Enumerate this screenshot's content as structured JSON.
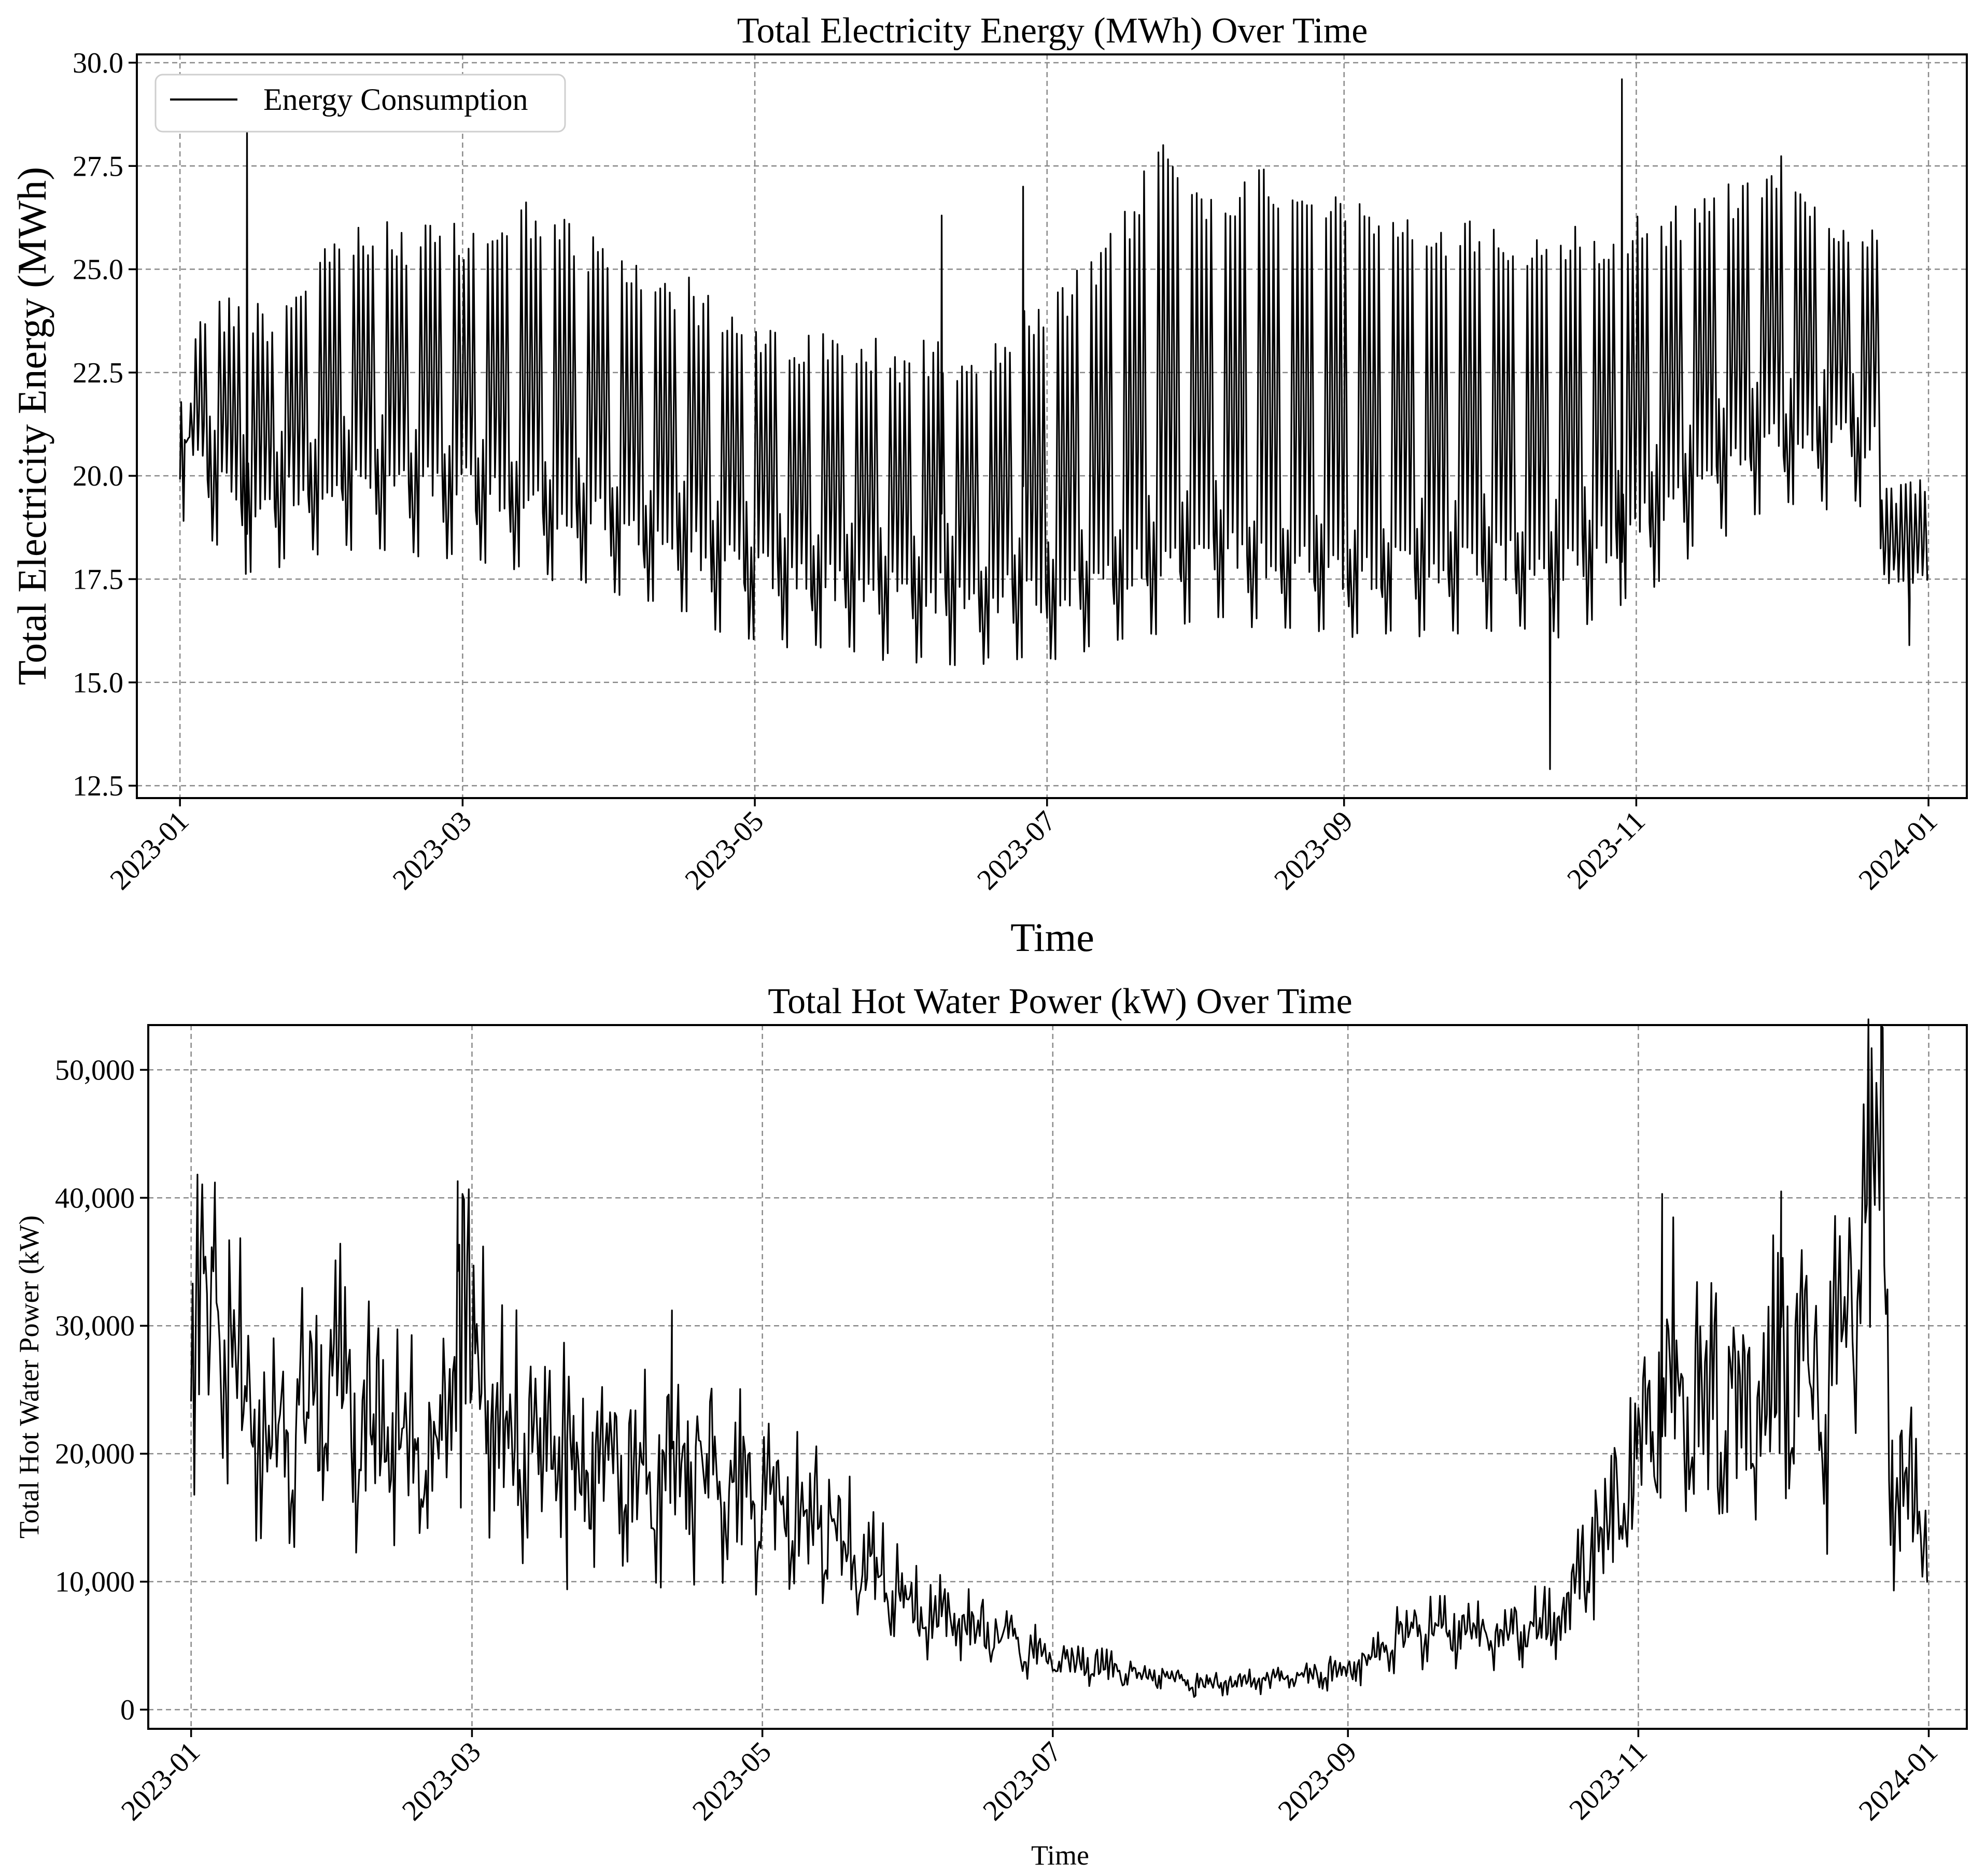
{
  "chart_data": [
    {
      "type": "line",
      "title": "Total Electricity Energy (MWh) Over Time",
      "xlabel": "Time",
      "ylabel": "Total Electricity Energy (MWh)",
      "xlim": [
        "2022-12-23",
        "2024-01-09"
      ],
      "ylim": [
        12.2,
        30.2
      ],
      "xticks": [
        "2023-01",
        "2023-03",
        "2023-05",
        "2023-07",
        "2023-09",
        "2023-11",
        "2024-01"
      ],
      "yticks": [
        "12.5",
        "15.0",
        "17.5",
        "20.0",
        "22.5",
        "25.0",
        "27.5",
        "30.0"
      ],
      "grid": true,
      "legend": {
        "position": "top-left",
        "entries": [
          "Energy Consumption"
        ]
      },
      "series": [
        {
          "name": "Energy Consumption",
          "sampling": "daily",
          "x_start": "2023-01-01",
          "x_end": "2023-12-31",
          "weekday_peak_trend": [
            [
              "2023-01-01",
              20.5
            ],
            [
              "2023-01-05",
              24.5
            ],
            [
              "2023-01-20",
              24.3
            ],
            [
              "2023-02-01",
              25.9
            ],
            [
              "2023-02-15",
              26.2
            ],
            [
              "2023-03-01",
              26.1
            ],
            [
              "2023-03-15",
              26.8
            ],
            [
              "2023-04-01",
              25.6
            ],
            [
              "2023-04-15",
              25.0
            ],
            [
              "2023-05-01",
              23.8
            ],
            [
              "2023-05-15",
              23.5
            ],
            [
              "2023-06-01",
              23.3
            ],
            [
              "2023-06-15",
              23.4
            ],
            [
              "2023-07-01",
              24.3
            ],
            [
              "2023-07-15",
              26.0
            ],
            [
              "2023-07-25",
              28.4
            ],
            [
              "2023-08-01",
              27.0
            ],
            [
              "2023-08-15",
              27.6
            ],
            [
              "2023-09-01",
              27.2
            ],
            [
              "2023-09-15",
              26.2
            ],
            [
              "2023-10-01",
              26.3
            ],
            [
              "2023-10-15",
              25.9
            ],
            [
              "2023-11-01",
              26.5
            ],
            [
              "2023-11-15",
              26.8
            ],
            [
              "2023-12-01",
              28.0
            ],
            [
              "2023-12-15",
              26.4
            ],
            [
              "2023-12-21",
              26.0
            ],
            [
              "2023-12-31",
              19.6
            ]
          ],
          "weekend_low_trend": [
            [
              "2023-01-01",
              19.0
            ],
            [
              "2023-01-15",
              17.8
            ],
            [
              "2023-02-01",
              18.5
            ],
            [
              "2023-03-01",
              18.2
            ],
            [
              "2023-04-01",
              17.4
            ],
            [
              "2023-05-01",
              16.2
            ],
            [
              "2023-06-01",
              15.7
            ],
            [
              "2023-07-01",
              15.6
            ],
            [
              "2023-08-01",
              16.8
            ],
            [
              "2023-09-01",
              16.2
            ],
            [
              "2023-10-01",
              16.5
            ],
            [
              "2023-10-15",
              16.3
            ],
            [
              "2023-11-01",
              17.3
            ],
            [
              "2023-11-15",
              18.6
            ],
            [
              "2023-12-01",
              19.4
            ],
            [
              "2023-12-21",
              19.4
            ],
            [
              "2023-12-31",
              17.6
            ]
          ],
          "notable_points": [
            [
              "2023-01-15",
              28.6
            ],
            [
              "2023-06-09",
              26.3
            ],
            [
              "2023-06-26",
              27.0
            ],
            [
              "2023-10-14",
              12.9
            ],
            [
              "2023-10-29",
              29.6
            ],
            [
              "2023-12-28",
              15.9
            ]
          ]
        }
      ]
    },
    {
      "type": "line",
      "title": "Total Hot Water Power (kW) Over Time",
      "xlabel": "Time",
      "ylabel": "Total Hot Water Power (kW)",
      "xlim": [
        "2022-12-23",
        "2024-01-09"
      ],
      "ylim": [
        -1500,
        53500
      ],
      "xticks": [
        "2023-01",
        "2023-03",
        "2023-05",
        "2023-07",
        "2023-09",
        "2023-11",
        "2024-01"
      ],
      "yticks": [
        "0",
        "10,000",
        "20,000",
        "30,000",
        "40,000",
        "50,000"
      ],
      "grid": true,
      "series": [
        {
          "sampling": "daily",
          "x_start": "2023-01-01",
          "x_end": "2023-12-31",
          "trend": [
            [
              "2023-01-01",
              33000
            ],
            [
              "2023-01-07",
              32000
            ],
            [
              "2023-01-15",
              21000
            ],
            [
              "2023-02-01",
              25000
            ],
            [
              "2023-02-10",
              21000
            ],
            [
              "2023-02-22",
              20000
            ],
            [
              "2023-02-26",
              33000
            ],
            [
              "2023-03-05",
              22000
            ],
            [
              "2023-03-15",
              21000
            ],
            [
              "2023-04-01",
              18000
            ],
            [
              "2023-04-15",
              20000
            ],
            [
              "2023-05-01",
              16000
            ],
            [
              "2023-05-15",
              14000
            ],
            [
              "2023-06-01",
              8000
            ],
            [
              "2023-06-15",
              6500
            ],
            [
              "2023-07-01",
              4000
            ],
            [
              "2023-07-15",
              3000
            ],
            [
              "2023-08-01",
              2000
            ],
            [
              "2023-08-15",
              2300
            ],
            [
              "2023-09-01",
              3000
            ],
            [
              "2023-09-15",
              6500
            ],
            [
              "2023-10-01",
              6000
            ],
            [
              "2023-10-15",
              7000
            ],
            [
              "2023-10-25",
              15000
            ],
            [
              "2023-11-01",
              19000
            ],
            [
              "2023-11-08",
              27000
            ],
            [
              "2023-11-15",
              23000
            ],
            [
              "2023-12-01",
              27000
            ],
            [
              "2023-12-10",
              24000
            ],
            [
              "2023-12-18",
              39000
            ],
            [
              "2023-12-22",
              42000
            ],
            [
              "2023-12-24",
              18000
            ],
            [
              "2023-12-31",
              15500
            ]
          ],
          "notable_points": [
            [
              "2023-01-06",
              41200
            ],
            [
              "2023-02-26",
              41300
            ],
            [
              "2023-03-21",
              9400
            ],
            [
              "2023-04-12",
              31200
            ],
            [
              "2023-07-31",
              1100
            ],
            [
              "2023-11-06",
              40300
            ],
            [
              "2023-12-01",
              40500
            ],
            [
              "2023-12-22",
              51000
            ],
            [
              "2023-12-26",
              12400
            ]
          ]
        }
      ]
    }
  ]
}
